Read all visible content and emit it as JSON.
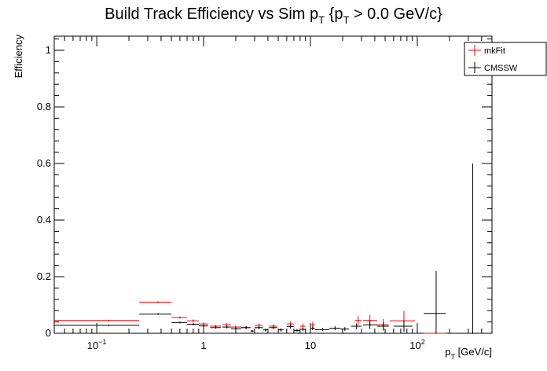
{
  "chart_data": {
    "type": "scatter",
    "title": {
      "main": "Build Track Efficiency vs Sim p",
      "sub1": "T",
      "mid": " {p",
      "sub2": "T",
      "tail": " > 0.0 GeV/c}"
    },
    "xlabel": {
      "main": "p",
      "sub": "T",
      "tail": " [GeV/c]"
    },
    "ylabel": "Efficiency",
    "xscale": "log",
    "xlim": [
      0.04,
      500
    ],
    "ylim": [
      0,
      1.05
    ],
    "x_tick_labels": [
      {
        "base": "10",
        "exp": "−1",
        "value": 0.1
      },
      {
        "base": "1",
        "exp": "",
        "value": 1
      },
      {
        "base": "10",
        "exp": "",
        "value": 10
      },
      {
        "base": "10",
        "exp": "2",
        "value": 100
      }
    ],
    "y_ticks": [
      0,
      0.2,
      0.4,
      0.6,
      0.8,
      1
    ],
    "y_tick_labels": [
      "0",
      "0.2",
      "0.4",
      "0.6",
      "0.8",
      "1"
    ],
    "grid": false,
    "legend_position": "top-right",
    "series": [
      {
        "name": "mkFit",
        "color": "#ff0000",
        "points": [
          {
            "x": 0.13,
            "xlo": 0.04,
            "xhi": 0.25,
            "y": 0.045,
            "err": 0.003
          },
          {
            "x": 0.375,
            "xlo": 0.25,
            "xhi": 0.5,
            "y": 0.11,
            "err": 0.003
          },
          {
            "x": 0.6,
            "xlo": 0.5,
            "xhi": 0.7,
            "y": 0.056,
            "err": 0.004
          },
          {
            "x": 0.8,
            "xlo": 0.7,
            "xhi": 0.9,
            "y": 0.044,
            "err": 0.005
          },
          {
            "x": 1.0,
            "xlo": 0.9,
            "xhi": 1.1,
            "y": 0.033,
            "err": 0.005
          },
          {
            "x": 1.3,
            "xlo": 1.15,
            "xhi": 1.45,
            "y": 0.025,
            "err": 0.005
          },
          {
            "x": 1.65,
            "xlo": 1.5,
            "xhi": 1.8,
            "y": 0.03,
            "err": 0.006
          },
          {
            "x": 2.0,
            "xlo": 1.8,
            "xhi": 2.25,
            "y": 0.022,
            "err": 0.006
          },
          {
            "x": 2.5,
            "xlo": 2.25,
            "xhi": 2.75,
            "y": 0.02,
            "err": 0.006
          },
          {
            "x": 3.3,
            "xlo": 3.0,
            "xhi": 3.6,
            "y": 0.028,
            "err": 0.007
          },
          {
            "x": 4.5,
            "xlo": 4.1,
            "xhi": 4.9,
            "y": 0.025,
            "err": 0.007
          },
          {
            "x": 6.5,
            "xlo": 6.0,
            "xhi": 7.0,
            "y": 0.033,
            "err": 0.009
          },
          {
            "x": 8.5,
            "xlo": 8.0,
            "xhi": 9.0,
            "y": 0.025,
            "err": 0.009
          },
          {
            "x": 10.5,
            "xlo": 10.0,
            "xhi": 11.0,
            "y": 0.03,
            "err": 0.01
          },
          {
            "x": 28,
            "xlo": 26,
            "xhi": 30,
            "y": 0.045,
            "err": 0.015
          },
          {
            "x": 36,
            "xlo": 31,
            "xhi": 42,
            "y": 0.045,
            "err": 0.02
          },
          {
            "x": 48,
            "xlo": 42,
            "xhi": 54,
            "y": 0.03,
            "err": 0.02
          },
          {
            "x": 75,
            "xlo": 55,
            "xhi": 95,
            "y": 0.044,
            "err": 0.035
          },
          {
            "x": 150,
            "xlo": 115,
            "xhi": 185,
            "y": 0.0,
            "err": 0.0
          }
        ]
      },
      {
        "name": "CMSSW",
        "color": "#000000",
        "points": [
          {
            "x": 0.13,
            "xlo": 0.04,
            "xhi": 0.25,
            "y": 0.028,
            "err": 0.002
          },
          {
            "x": 0.375,
            "xlo": 0.25,
            "xhi": 0.5,
            "y": 0.068,
            "err": 0.003
          },
          {
            "x": 0.6,
            "xlo": 0.5,
            "xhi": 0.7,
            "y": 0.038,
            "err": 0.003
          },
          {
            "x": 0.8,
            "xlo": 0.7,
            "xhi": 0.9,
            "y": 0.032,
            "err": 0.004
          },
          {
            "x": 1.0,
            "xlo": 0.9,
            "xhi": 1.1,
            "y": 0.026,
            "err": 0.004
          },
          {
            "x": 1.3,
            "xlo": 1.15,
            "xhi": 1.45,
            "y": 0.02,
            "err": 0.004
          },
          {
            "x": 1.65,
            "xlo": 1.5,
            "xhi": 1.8,
            "y": 0.022,
            "err": 0.005
          },
          {
            "x": 2.0,
            "xlo": 1.8,
            "xhi": 2.25,
            "y": 0.016,
            "err": 0.005
          },
          {
            "x": 2.5,
            "xlo": 2.25,
            "xhi": 2.75,
            "y": 0.02,
            "err": 0.005
          },
          {
            "x": 2.85,
            "xlo": 2.75,
            "xhi": 2.95,
            "y": 0.008,
            "err": 0.004
          },
          {
            "x": 3.3,
            "xlo": 3.0,
            "xhi": 3.6,
            "y": 0.02,
            "err": 0.006
          },
          {
            "x": 3.8,
            "xlo": 3.6,
            "xhi": 4.0,
            "y": 0.012,
            "err": 0.005
          },
          {
            "x": 4.5,
            "xlo": 4.1,
            "xhi": 4.9,
            "y": 0.02,
            "err": 0.006
          },
          {
            "x": 5.3,
            "xlo": 5.0,
            "xhi": 5.6,
            "y": 0.012,
            "err": 0.006
          },
          {
            "x": 6.5,
            "xlo": 6.0,
            "xhi": 7.0,
            "y": 0.024,
            "err": 0.007
          },
          {
            "x": 7.5,
            "xlo": 7.0,
            "xhi": 8.0,
            "y": 0.01,
            "err": 0.005
          },
          {
            "x": 8.5,
            "xlo": 8.0,
            "xhi": 9.0,
            "y": 0.014,
            "err": 0.006
          },
          {
            "x": 10.5,
            "xlo": 10.0,
            "xhi": 11.0,
            "y": 0.018,
            "err": 0.007
          },
          {
            "x": 13,
            "xlo": 11,
            "xhi": 15,
            "y": 0.013,
            "err": 0.006
          },
          {
            "x": 17,
            "xlo": 15,
            "xhi": 19,
            "y": 0.018,
            "err": 0.007
          },
          {
            "x": 21,
            "xlo": 19,
            "xhi": 23,
            "y": 0.015,
            "err": 0.007
          },
          {
            "x": 27,
            "xlo": 24,
            "xhi": 30,
            "y": 0.025,
            "err": 0.01
          },
          {
            "x": 36,
            "xlo": 31,
            "xhi": 42,
            "y": 0.03,
            "err": 0.015
          },
          {
            "x": 48,
            "xlo": 42,
            "xhi": 54,
            "y": 0.025,
            "err": 0.015
          },
          {
            "x": 75,
            "xlo": 60,
            "xhi": 90,
            "y": 0.025,
            "err": 0.02
          },
          {
            "x": 150,
            "xlo": 115,
            "xhi": 185,
            "y": 0.07,
            "err": 0.15
          },
          {
            "x": 330,
            "xlo": 330,
            "xhi": 330,
            "y": 0.0,
            "err": 0.0,
            "ehi": 0.6
          }
        ]
      }
    ]
  }
}
